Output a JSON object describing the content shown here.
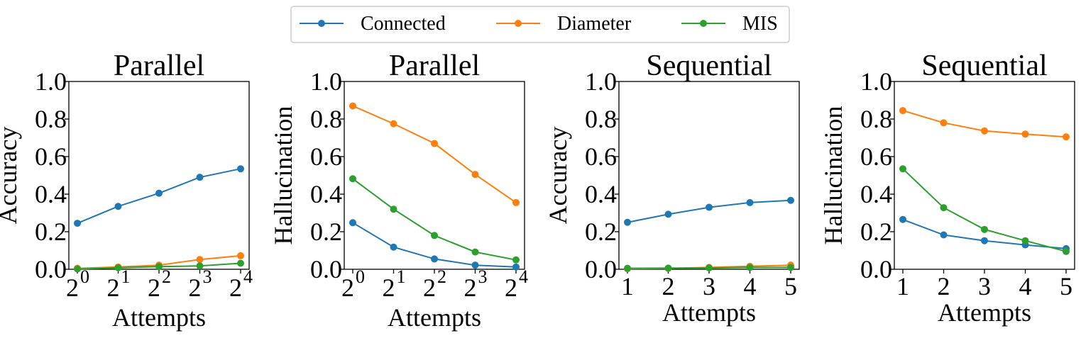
{
  "legend": [
    {
      "name": "Connected",
      "color": "#1f77b4"
    },
    {
      "name": "Diameter",
      "color": "#ff7f0e"
    },
    {
      "name": "MIS",
      "color": "#2ca02c"
    }
  ],
  "chart_data": [
    {
      "type": "line",
      "title": "Parallel",
      "xlabel": "Attempts",
      "ylabel": "Accuracy",
      "ylim": [
        0,
        1
      ],
      "yticks": [
        "0.0",
        "0.2",
        "0.4",
        "0.6",
        "0.8",
        "1.0"
      ],
      "xtick_mode": "pow2",
      "xticks": [
        {
          "base": "2",
          "exp": "0"
        },
        {
          "base": "2",
          "exp": "1"
        },
        {
          "base": "2",
          "exp": "2"
        },
        {
          "base": "2",
          "exp": "3"
        },
        {
          "base": "2",
          "exp": "4"
        }
      ],
      "series": [
        {
          "name": "Connected",
          "color": "#1f77b4",
          "values": [
            0.245,
            0.335,
            0.405,
            0.49,
            0.535
          ]
        },
        {
          "name": "Diameter",
          "color": "#ff7f0e",
          "values": [
            0.005,
            0.012,
            0.022,
            0.052,
            0.072
          ]
        },
        {
          "name": "MIS",
          "color": "#2ca02c",
          "values": [
            0.002,
            0.008,
            0.014,
            0.018,
            0.032
          ]
        }
      ]
    },
    {
      "type": "line",
      "title": "Parallel",
      "xlabel": "Attempts",
      "ylabel": "Hallucination",
      "ylim": [
        0,
        1
      ],
      "yticks": [
        "0.0",
        "0.2",
        "0.4",
        "0.6",
        "0.8",
        "1.0"
      ],
      "xtick_mode": "pow2",
      "xticks": [
        {
          "base": "2",
          "exp": "0"
        },
        {
          "base": "2",
          "exp": "1"
        },
        {
          "base": "2",
          "exp": "2"
        },
        {
          "base": "2",
          "exp": "3"
        },
        {
          "base": "2",
          "exp": "4"
        }
      ],
      "series": [
        {
          "name": "Connected",
          "color": "#1f77b4",
          "values": [
            0.248,
            0.118,
            0.055,
            0.022,
            0.012
          ]
        },
        {
          "name": "Diameter",
          "color": "#ff7f0e",
          "values": [
            0.87,
            0.775,
            0.67,
            0.505,
            0.355
          ]
        },
        {
          "name": "MIS",
          "color": "#2ca02c",
          "values": [
            0.482,
            0.32,
            0.18,
            0.092,
            0.05
          ]
        }
      ]
    },
    {
      "type": "line",
      "title": "Sequential",
      "xlabel": "Attempts",
      "ylabel": "Accuracy",
      "ylim": [
        0,
        1
      ],
      "yticks": [
        "0.0",
        "0.2",
        "0.4",
        "0.6",
        "0.8",
        "1.0"
      ],
      "xtick_mode": "plain",
      "xticks": [
        "1",
        "2",
        "3",
        "4",
        "5"
      ],
      "series": [
        {
          "name": "Connected",
          "color": "#1f77b4",
          "values": [
            0.25,
            0.293,
            0.33,
            0.355,
            0.367
          ]
        },
        {
          "name": "Diameter",
          "color": "#ff7f0e",
          "values": [
            0.003,
            0.005,
            0.01,
            0.016,
            0.022
          ]
        },
        {
          "name": "MIS",
          "color": "#2ca02c",
          "values": [
            0.005,
            0.006,
            0.007,
            0.01,
            0.01
          ]
        }
      ]
    },
    {
      "type": "line",
      "title": "Sequential",
      "xlabel": "Attempts",
      "ylabel": "Hallucination",
      "ylim": [
        0,
        1
      ],
      "yticks": [
        "0.0",
        "0.2",
        "0.4",
        "0.6",
        "0.8",
        "1.0"
      ],
      "xtick_mode": "plain",
      "xticks": [
        "1",
        "2",
        "3",
        "4",
        "5"
      ],
      "series": [
        {
          "name": "Connected",
          "color": "#1f77b4",
          "values": [
            0.265,
            0.183,
            0.152,
            0.13,
            0.11
          ]
        },
        {
          "name": "Diameter",
          "color": "#ff7f0e",
          "values": [
            0.845,
            0.78,
            0.737,
            0.72,
            0.705
          ]
        },
        {
          "name": "MIS",
          "color": "#2ca02c",
          "values": [
            0.535,
            0.328,
            0.212,
            0.152,
            0.095
          ]
        }
      ]
    }
  ]
}
